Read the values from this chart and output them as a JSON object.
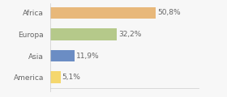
{
  "categories": [
    "America",
    "Asia",
    "Europa",
    "Africa"
  ],
  "values": [
    5.1,
    11.9,
    32.2,
    50.8
  ],
  "labels": [
    "5,1%",
    "11,9%",
    "32,2%",
    "50,8%"
  ],
  "bar_colors": [
    "#f5d76e",
    "#6b8dc4",
    "#b5c98a",
    "#e8b87a"
  ],
  "background_color": "#f7f7f7",
  "xlim": [
    0,
    72
  ],
  "label_fontsize": 6.5,
  "tick_fontsize": 6.5,
  "bar_height": 0.55
}
